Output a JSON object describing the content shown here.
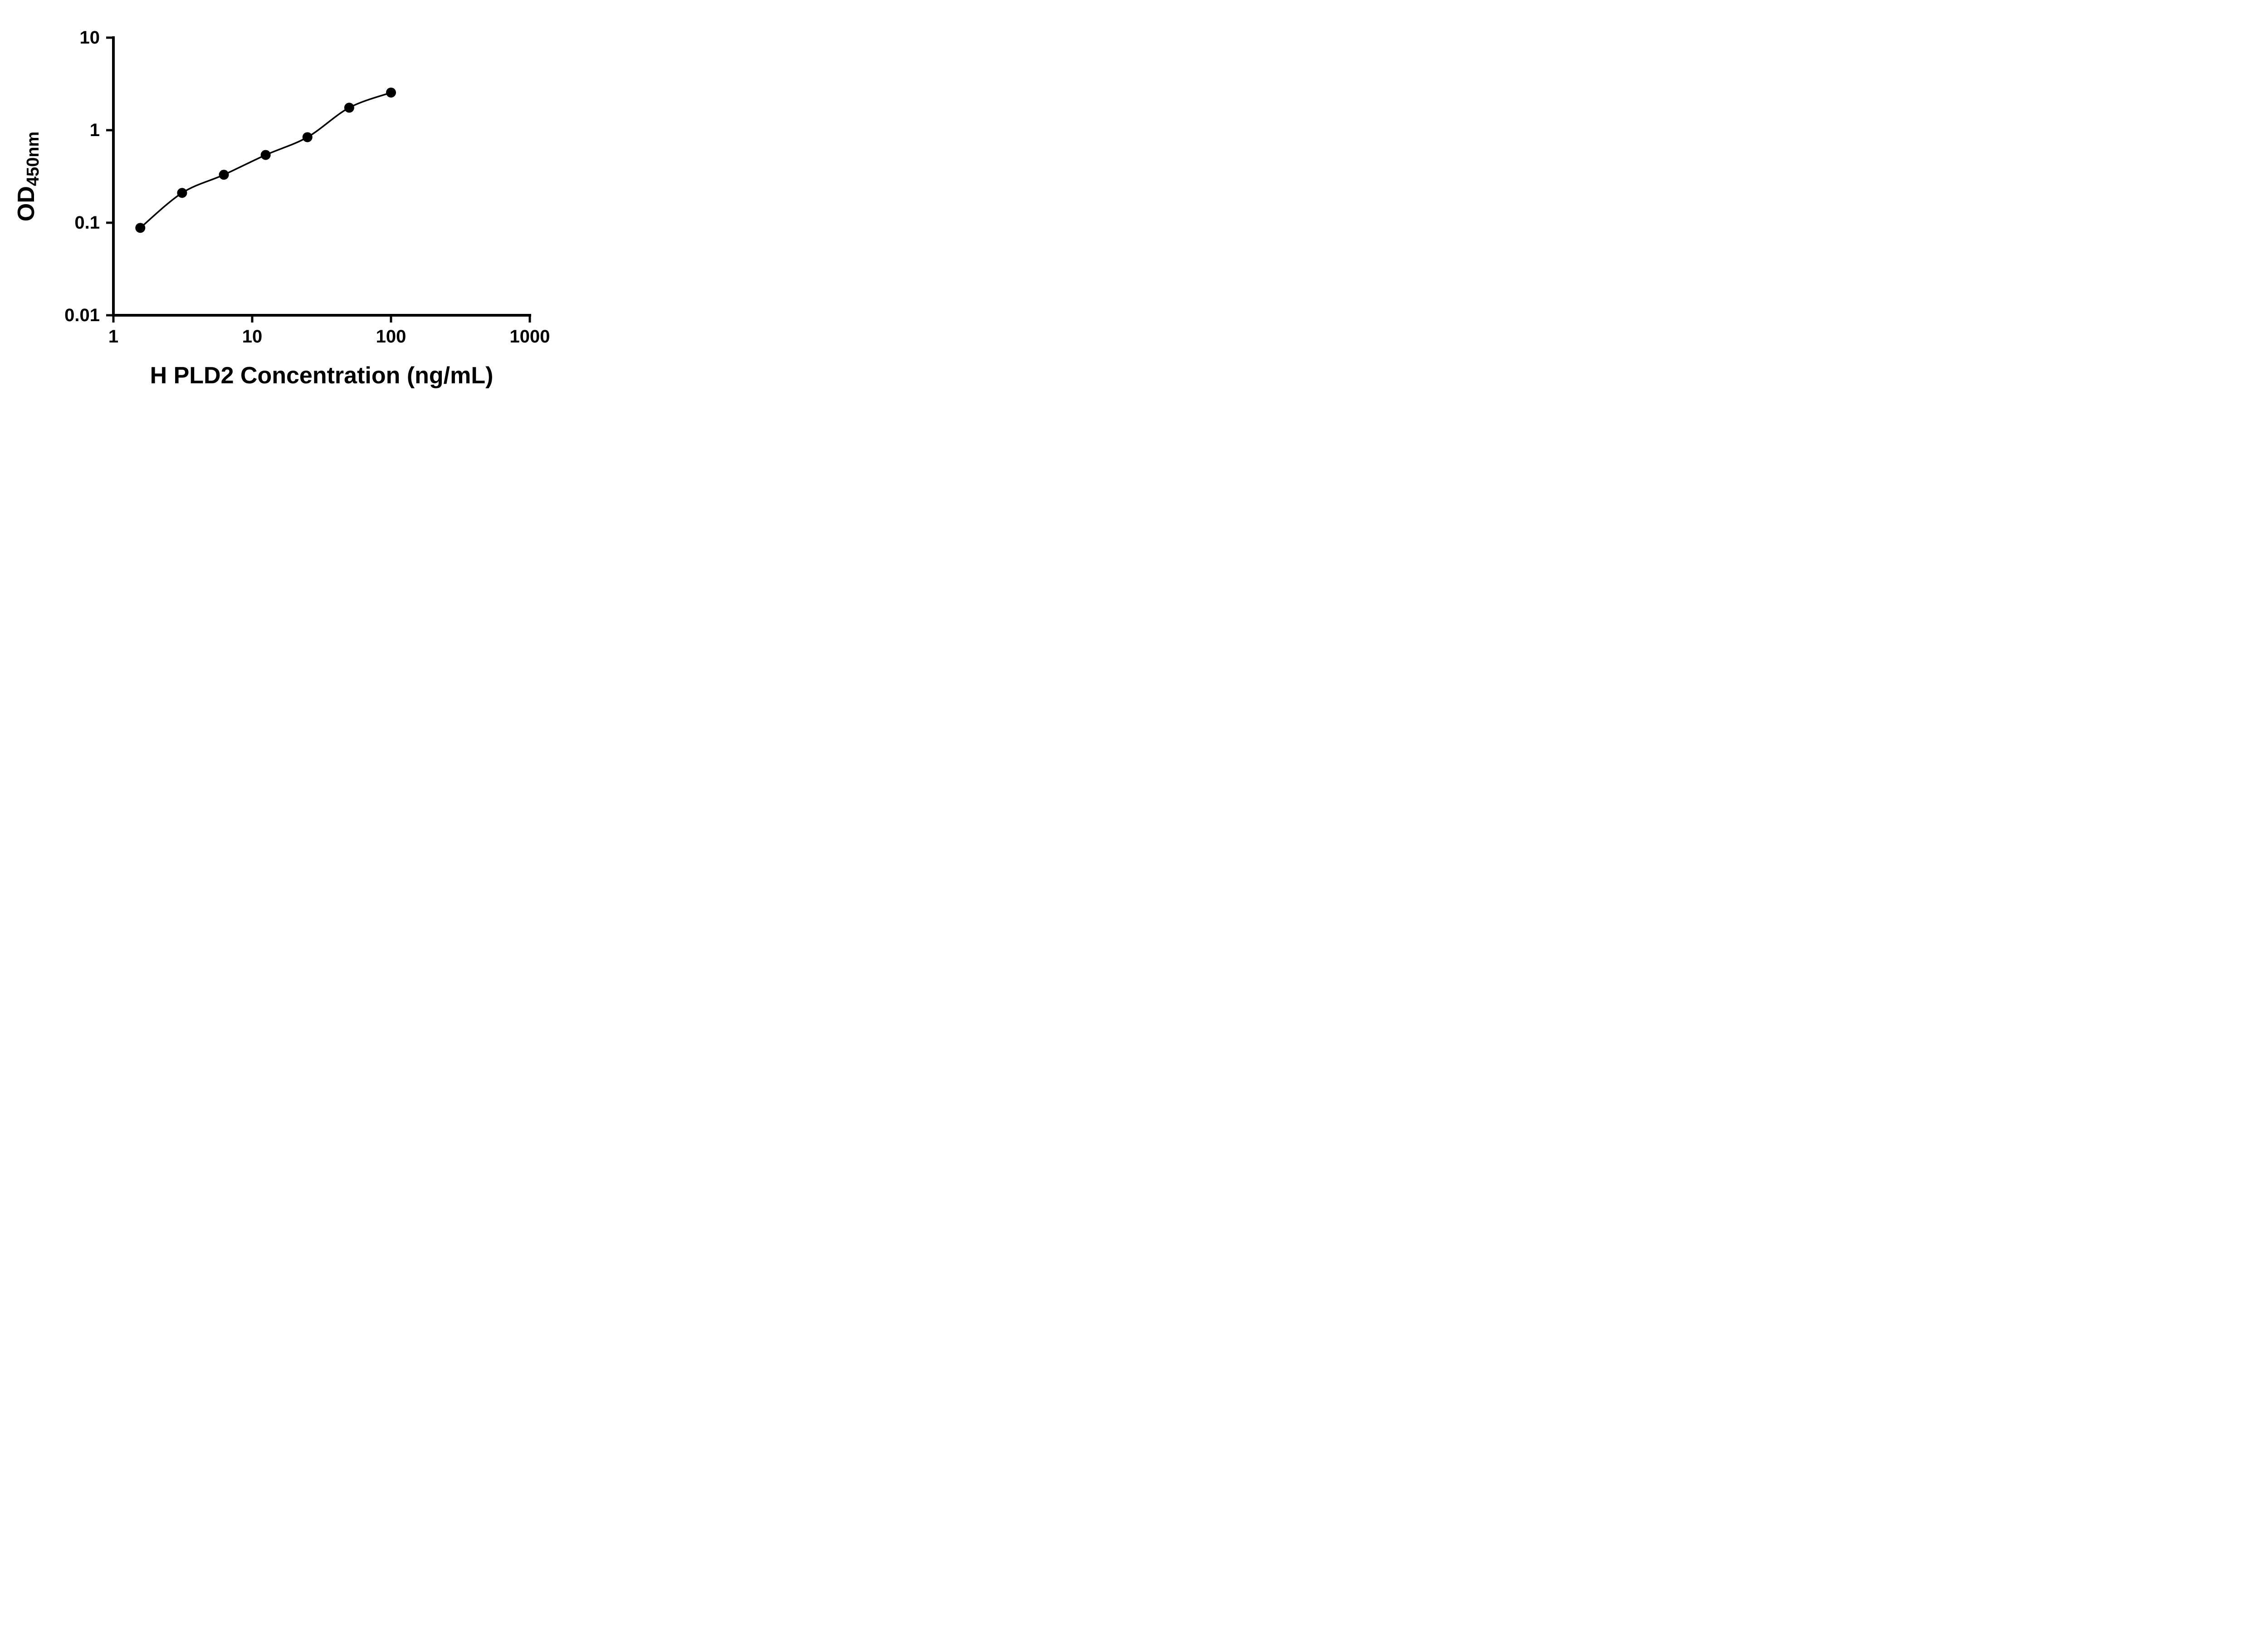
{
  "chart_data": {
    "type": "scatter",
    "title": "",
    "xlabel": "H PLD2 Concentration (ng/mL)",
    "ylabel": "OD450nm",
    "ylabel_main": "OD",
    "ylabel_sub": "450nm",
    "x_scale": "log",
    "y_scale": "log",
    "xlim": [
      1,
      1000
    ],
    "ylim": [
      0.01,
      10
    ],
    "x_ticks": [
      1,
      10,
      100,
      1000
    ],
    "x_tick_labels": [
      "1",
      "10",
      "100",
      "1000"
    ],
    "y_ticks": [
      0.01,
      0.1,
      1,
      10
    ],
    "y_tick_labels": [
      "0.01",
      "0.1",
      "1",
      "10"
    ],
    "grid": false,
    "legend": false,
    "fit_curve": true,
    "series": [
      {
        "marker": "circle-filled",
        "color": "#000000",
        "x": [
          1.5625,
          3.125,
          6.25,
          12.5,
          25,
          50,
          100
        ],
        "y": [
          0.088,
          0.21,
          0.33,
          0.54,
          0.84,
          1.75,
          2.55
        ]
      }
    ],
    "colors": {
      "axis": "#000000",
      "marker": "#000000",
      "curve": "#000000",
      "background": "#ffffff"
    }
  }
}
